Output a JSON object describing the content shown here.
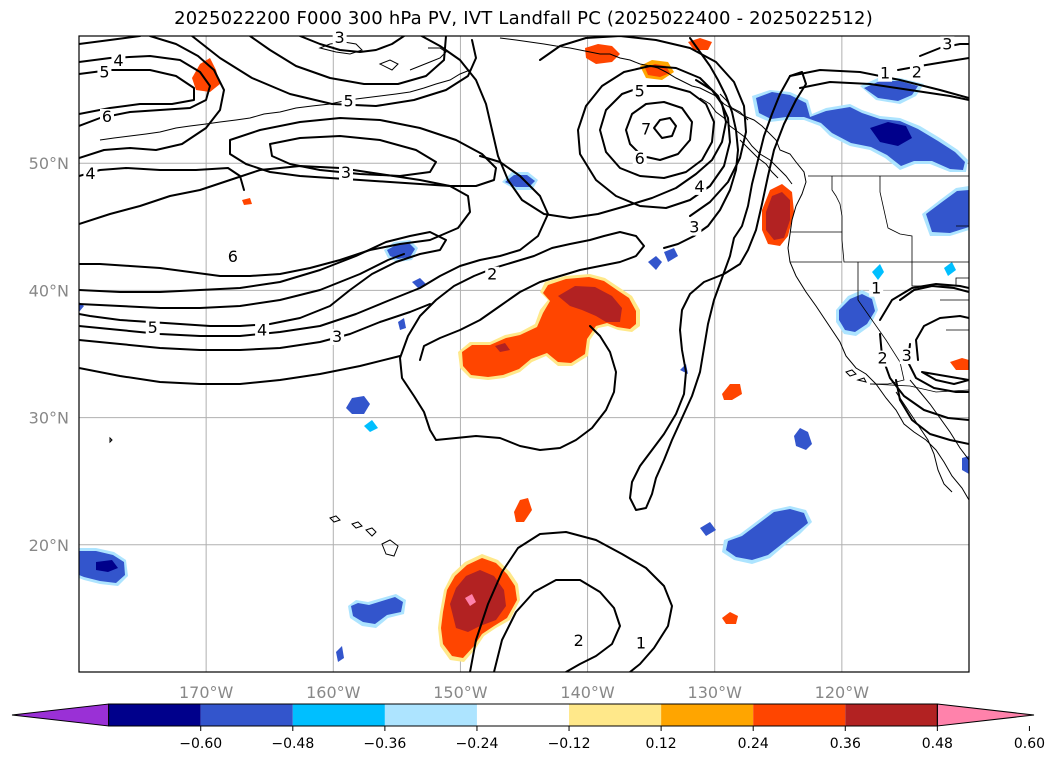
{
  "title": "2025022200 F000 300 hPa PV, IVT Landfall PC (2025022400 - 2025022512)",
  "map": {
    "lon_range": [
      -180,
      -110
    ],
    "lat_range": [
      10,
      60
    ],
    "lat_ticks": [
      {
        "value": 20,
        "label": "20°N"
      },
      {
        "value": 30,
        "label": "30°N"
      },
      {
        "value": 40,
        "label": "40°N"
      },
      {
        "value": 50,
        "label": "50°N"
      }
    ],
    "lon_ticks": [
      {
        "value": -170,
        "label": "170°W"
      },
      {
        "value": -160,
        "label": "160°W"
      },
      {
        "value": -150,
        "label": "150°W"
      },
      {
        "value": -140,
        "label": "140°W"
      },
      {
        "value": -130,
        "label": "130°W"
      },
      {
        "value": -120,
        "label": "120°W"
      }
    ],
    "grid": true
  },
  "colorbar": {
    "levels": [
      -0.72,
      -0.6,
      -0.48,
      -0.36,
      -0.24,
      -0.12,
      0.12,
      0.24,
      0.36,
      0.48,
      0.6,
      0.72
    ],
    "colors": [
      "#9a30d6",
      "#00008b",
      "#3355cc",
      "#00bfff",
      "#ade4ff",
      "#ffffff",
      "#ffe88a",
      "#ffa500",
      "#ff4500",
      "#b22222",
      "#ff82ab"
    ],
    "tick_labels": [
      "−0.60",
      "−0.48",
      "−0.36",
      "−0.24",
      "−0.12",
      "0.12",
      "0.24",
      "0.36",
      "0.48",
      "0.60"
    ],
    "extend": "both"
  },
  "contour_labels": [
    {
      "text": "4",
      "lon": -176.9,
      "lat": 57.8
    },
    {
      "text": "5",
      "lon": -178.0,
      "lat": 56.9
    },
    {
      "text": "6",
      "lon": -177.8,
      "lat": 53.4
    },
    {
      "text": "4",
      "lon": -179.1,
      "lat": 48.9
    },
    {
      "text": "5",
      "lon": -158.8,
      "lat": 54.6
    },
    {
      "text": "3",
      "lon": -159.0,
      "lat": 49.0
    },
    {
      "text": "6",
      "lon": -167.9,
      "lat": 42.4
    },
    {
      "text": "5",
      "lon": -174.2,
      "lat": 36.8
    },
    {
      "text": "4",
      "lon": -165.6,
      "lat": 36.6
    },
    {
      "text": "3",
      "lon": -159.7,
      "lat": 36.1
    },
    {
      "text": "2",
      "lon": -147.5,
      "lat": 41.0
    },
    {
      "text": "3",
      "lon": -159.5,
      "lat": 59.6
    },
    {
      "text": "5",
      "lon": -135.9,
      "lat": 55.4
    },
    {
      "text": "7",
      "lon": -135.4,
      "lat": 52.4
    },
    {
      "text": "6",
      "lon": -135.9,
      "lat": 50.1
    },
    {
      "text": "4",
      "lon": -131.2,
      "lat": 47.9
    },
    {
      "text": "3",
      "lon": -131.6,
      "lat": 44.7
    },
    {
      "text": "1",
      "lon": -116.6,
      "lat": 56.8
    },
    {
      "text": "2",
      "lon": -114.1,
      "lat": 56.9
    },
    {
      "text": "3",
      "lon": -111.7,
      "lat": 59.1
    },
    {
      "text": "1",
      "lon": -117.3,
      "lat": 39.9
    },
    {
      "text": "2",
      "lon": -116.8,
      "lat": 34.4
    },
    {
      "text": "3",
      "lon": -114.9,
      "lat": 34.6
    },
    {
      "text": "2",
      "lon": -140.7,
      "lat": 12.2
    },
    {
      "text": "1",
      "lon": -135.8,
      "lat": 12.0
    }
  ]
}
